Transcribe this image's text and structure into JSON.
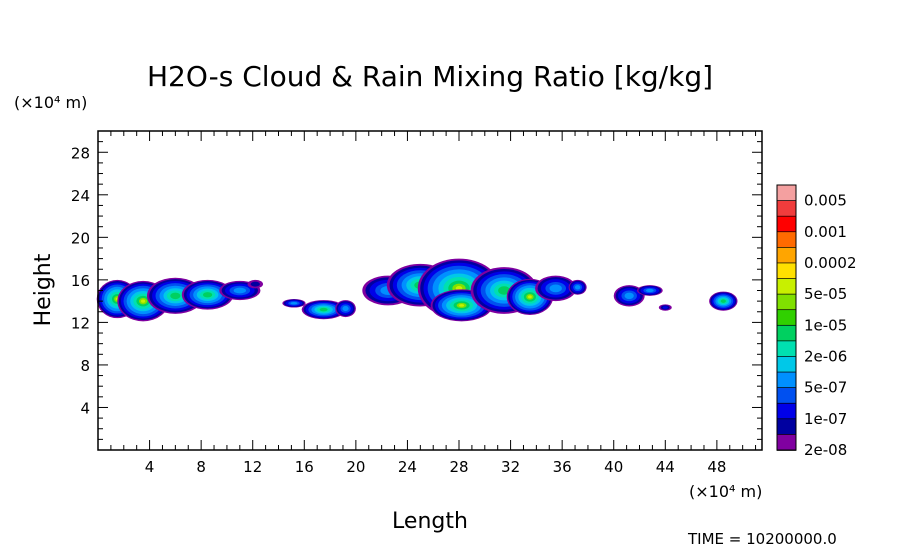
{
  "chart_data": {
    "type": "heatmap",
    "title": "H2O-s Cloud & Rain Mixing Ratio [kg/kg]",
    "xlabel": "Length",
    "ylabel": "Height",
    "x_unit": "(×10⁴ m)",
    "y_unit": "(×10⁴ m)",
    "xlim": [
      0,
      51.5
    ],
    "ylim": [
      0,
      30
    ],
    "x_ticks": [
      4,
      8,
      12,
      16,
      20,
      24,
      28,
      32,
      36,
      40,
      44,
      48
    ],
    "y_ticks": [
      4,
      8,
      12,
      16,
      20,
      24,
      28
    ],
    "colorbar": {
      "levels": [
        "0.005",
        "0.001",
        "0.0002",
        "5e-05",
        "1e-05",
        "2e-06",
        "5e-07",
        "1e-07",
        "2e-08"
      ],
      "colors": [
        "#f4a0a0",
        "#f03c3c",
        "#ff0000",
        "#ff6a00",
        "#ffa500",
        "#ffe000",
        "#c8f000",
        "#80e000",
        "#30d000",
        "#00d060",
        "#00e0b0",
        "#00c8e8",
        "#0090ff",
        "#0050f0",
        "#0000e8",
        "#0000a0",
        "#8000a0"
      ]
    },
    "cloud_regions": [
      {
        "x_range": [
          0,
          12.8
        ],
        "z_range": [
          12.2,
          16.2
        ],
        "core_max": "5e-05"
      },
      {
        "x_range": [
          14.5,
          19.8
        ],
        "z_range": [
          12.0,
          14.3
        ],
        "core_max": "2e-06"
      },
      {
        "x_range": [
          20.5,
          37.8
        ],
        "z_range": [
          12.0,
          18.2
        ],
        "core_max": "5e-05"
      },
      {
        "x_range": [
          40.0,
          44.8
        ],
        "z_range": [
          13.0,
          15.5
        ],
        "core_max": "5e-07"
      },
      {
        "x_range": [
          47.0,
          49.8
        ],
        "z_range": [
          13.0,
          14.8
        ],
        "core_max": "2e-06"
      }
    ],
    "grid": false,
    "legend_position": "right"
  },
  "footer": {
    "time_label": "TIME = 10200000.0"
  }
}
